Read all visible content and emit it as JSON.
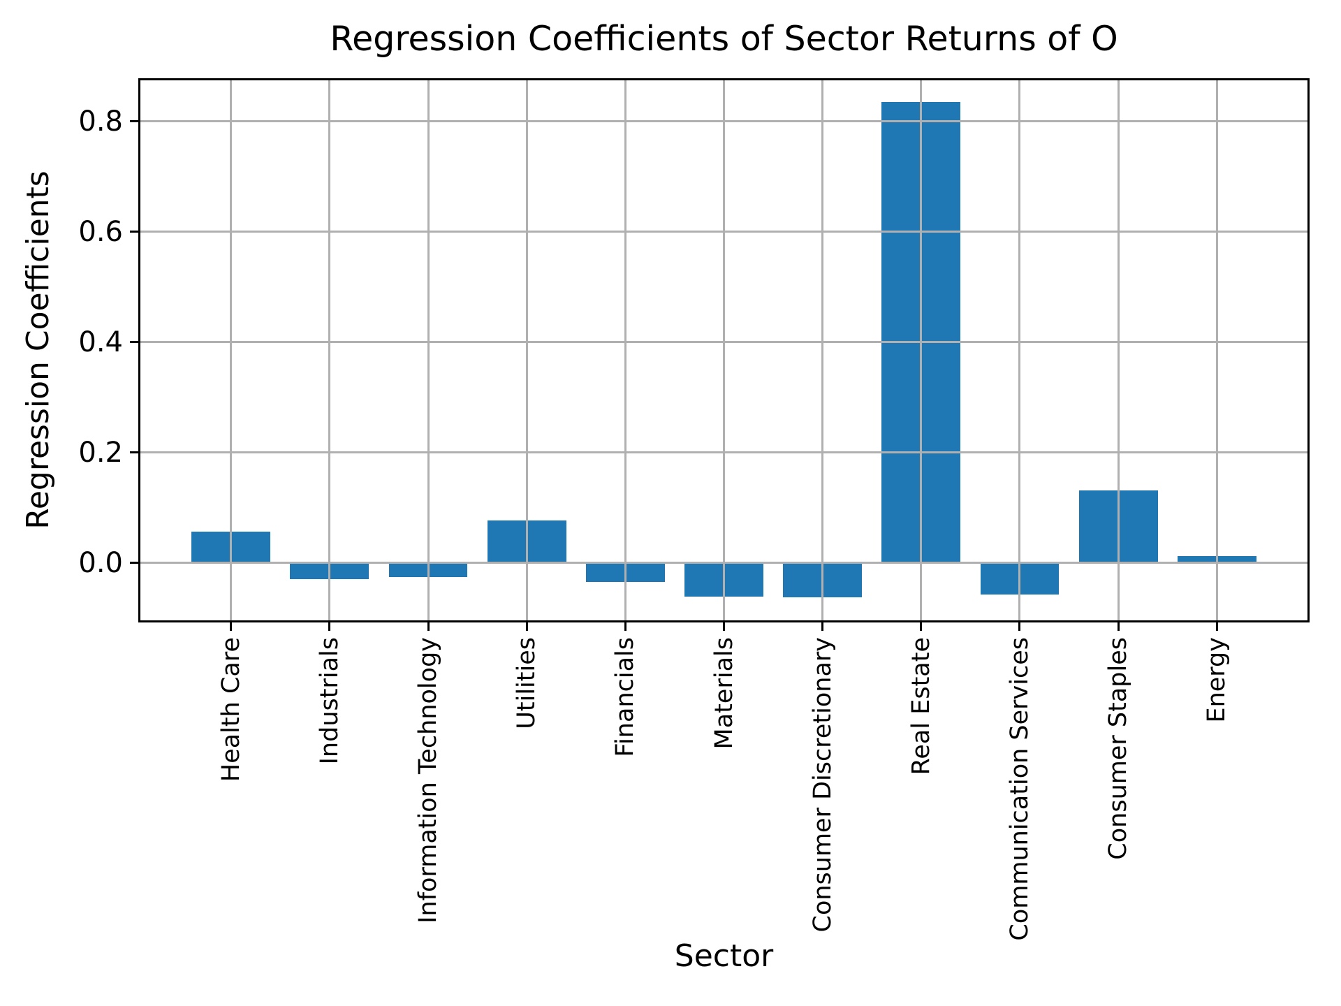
{
  "figure": {
    "background": "#ffffff"
  },
  "chart_data": {
    "type": "bar",
    "title": "Regression Coefficients of Sector Returns of O",
    "xlabel": "Sector",
    "ylabel": "Regression Coefficients",
    "categories": [
      "Health Care",
      "Industrials",
      "Information Technology",
      "Utilities",
      "Financials",
      "Materials",
      "Consumer Discretionary",
      "Real Estate",
      "Communication Services",
      "Consumer Staples",
      "Energy"
    ],
    "values": [
      0.056,
      -0.03,
      -0.026,
      0.077,
      -0.034,
      -0.061,
      -0.063,
      0.835,
      -0.057,
      0.131,
      0.012
    ],
    "yticks": [
      0.0,
      0.2,
      0.4,
      0.6,
      0.8
    ],
    "ytick_labels": [
      "0.0",
      "0.2",
      "0.4",
      "0.6",
      "0.8"
    ],
    "ylim": [
      -0.108,
      0.878
    ],
    "bar_color": "#1f77b4",
    "grid_color": "#b0b0b0",
    "spine_color": "#000000",
    "text_color": "#000000",
    "grid": true,
    "legend": "none"
  }
}
